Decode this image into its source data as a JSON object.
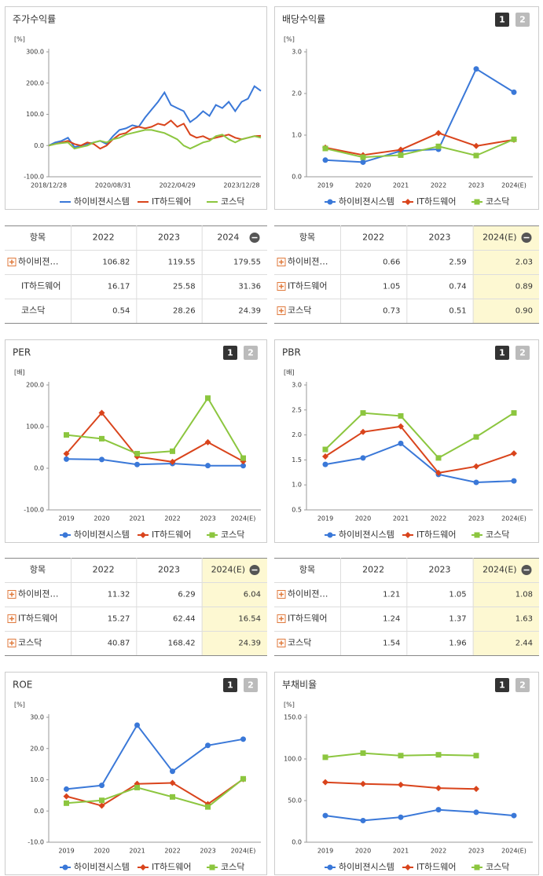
{
  "chart_data": [
    {
      "type": "line",
      "title": "주가수익률",
      "unit": "[%]",
      "pages": [],
      "categories": [
        "2018/12/28",
        null,
        null,
        null,
        null,
        null,
        null,
        null,
        null,
        null,
        "2020/08/31",
        null,
        null,
        null,
        null,
        null,
        null,
        null,
        null,
        null,
        "2022/04/29",
        null,
        null,
        null,
        null,
        null,
        null,
        null,
        null,
        null,
        "2023/12/28",
        null,
        null,
        null
      ],
      "ylim": [
        -100,
        300
      ],
      "yticks": [
        {
          "value": -100,
          "label": "-100.0"
        },
        {
          "value": 0,
          "label": "0.0"
        },
        {
          "value": 100,
          "label": "100.0"
        },
        {
          "value": 200,
          "label": "200.0"
        },
        {
          "value": 300,
          "label": "300.0"
        }
      ],
      "grid": false,
      "series": [
        {
          "name": "하이비젼시스템",
          "color": "#3a78d8",
          "values": [
            0,
            10,
            15,
            25,
            -5,
            0,
            5,
            10,
            15,
            5,
            30,
            50,
            55,
            65,
            60,
            90,
            115,
            140,
            170,
            130,
            120,
            110,
            75,
            90,
            110,
            95,
            130,
            120,
            140,
            110,
            140,
            150,
            190,
            175
          ]
        },
        {
          "name": "IT하드웨어",
          "color": "#d9441c",
          "values": [
            0,
            5,
            10,
            15,
            5,
            0,
            10,
            5,
            -10,
            0,
            20,
            35,
            40,
            55,
            60,
            55,
            60,
            70,
            65,
            80,
            60,
            70,
            35,
            25,
            30,
            20,
            25,
            30,
            35,
            25,
            20,
            25,
            30,
            31
          ]
        },
        {
          "name": "코스닥",
          "color": "#8cc63f",
          "values": [
            0,
            5,
            8,
            10,
            -10,
            -5,
            0,
            10,
            15,
            10,
            20,
            25,
            35,
            40,
            45,
            50,
            50,
            45,
            40,
            30,
            20,
            0,
            -10,
            0,
            10,
            15,
            30,
            35,
            20,
            10,
            20,
            25,
            30,
            25
          ]
        }
      ]
    },
    {
      "type": "line",
      "title": "배당수익률",
      "unit": "[%]",
      "pages": [
        "1",
        "2"
      ],
      "categories": [
        "2019",
        "2020",
        "2021",
        "2022",
        "2023",
        "2024(E)"
      ],
      "ylim": [
        0,
        3
      ],
      "yticks": [
        {
          "value": 0,
          "label": "0.0"
        },
        {
          "value": 1,
          "label": "1.0"
        },
        {
          "value": 2,
          "label": "2.0"
        },
        {
          "value": 3,
          "label": "3.0"
        }
      ],
      "grid": false,
      "series": [
        {
          "name": "하이비젼시스템",
          "color": "#3a78d8",
          "marker": "circle",
          "values": [
            0.4,
            0.35,
            0.62,
            0.66,
            2.59,
            2.03
          ]
        },
        {
          "name": "IT하드웨어",
          "color": "#d9441c",
          "marker": "diamond",
          "values": [
            0.7,
            0.52,
            0.65,
            1.05,
            0.74,
            0.89
          ]
        },
        {
          "name": "코스닥",
          "color": "#8cc63f",
          "marker": "square",
          "values": [
            0.68,
            0.47,
            0.52,
            0.73,
            0.51,
            0.9
          ]
        }
      ]
    },
    {
      "type": "line",
      "title": "PER",
      "unit": "[배]",
      "pages": [
        "1",
        "2"
      ],
      "categories": [
        "2019",
        "2020",
        "2021",
        "2022",
        "2023",
        "2024(E)"
      ],
      "ylim": [
        -100,
        200
      ],
      "yticks": [
        {
          "value": -100,
          "label": "-100.0"
        },
        {
          "value": 0,
          "label": "0.0"
        },
        {
          "value": 100,
          "label": "100.0"
        },
        {
          "value": 200,
          "label": "200.0"
        }
      ],
      "grid": false,
      "series": [
        {
          "name": "하이비젼시스템",
          "color": "#3a78d8",
          "marker": "circle",
          "values": [
            22,
            21,
            9,
            11.32,
            6.29,
            6.04
          ]
        },
        {
          "name": "IT하드웨어",
          "color": "#d9441c",
          "marker": "diamond",
          "values": [
            35,
            133,
            28,
            15.27,
            62.44,
            16.54
          ]
        },
        {
          "name": "코스닥",
          "color": "#8cc63f",
          "marker": "square",
          "values": [
            80,
            71,
            35,
            40.87,
            168.42,
            24.39
          ]
        }
      ]
    },
    {
      "type": "line",
      "title": "PBR",
      "unit": "[배]",
      "pages": [
        "1",
        "2"
      ],
      "categories": [
        "2019",
        "2020",
        "2021",
        "2022",
        "2023",
        "2024(E)"
      ],
      "ylim": [
        0.5,
        3
      ],
      "yticks": [
        0.5,
        {
          "value": 1,
          "label": "1.0"
        },
        1.5,
        {
          "value": 2,
          "label": "2.0"
        },
        2.5,
        {
          "value": 3,
          "label": "3.0"
        }
      ],
      "grid": false,
      "series": [
        {
          "name": "하이비젼시스템",
          "color": "#3a78d8",
          "marker": "circle",
          "values": [
            1.41,
            1.54,
            1.83,
            1.21,
            1.05,
            1.08
          ]
        },
        {
          "name": "IT하드웨어",
          "color": "#d9441c",
          "marker": "diamond",
          "values": [
            1.57,
            2.06,
            2.17,
            1.24,
            1.37,
            1.63
          ]
        },
        {
          "name": "코스닥",
          "color": "#8cc63f",
          "marker": "square",
          "values": [
            1.71,
            2.44,
            2.38,
            1.54,
            1.96,
            2.44
          ]
        }
      ]
    },
    {
      "type": "line",
      "title": "ROE",
      "unit": "[%]",
      "pages": [
        "1",
        "2"
      ],
      "categories": [
        "2019",
        "2020",
        "2021",
        "2022",
        "2023",
        "2024(E)"
      ],
      "ylim": [
        -10,
        30
      ],
      "yticks": [
        {
          "value": -10,
          "label": "-10.0"
        },
        {
          "value": 0,
          "label": "0.0"
        },
        {
          "value": 10,
          "label": "10.0"
        },
        {
          "value": 20,
          "label": "20.0"
        },
        {
          "value": 30,
          "label": "30.0"
        }
      ],
      "grid": false,
      "series": [
        {
          "name": "하이비젼시스템",
          "color": "#3a78d8",
          "marker": "circle",
          "values": [
            7,
            8.2,
            27.5,
            12.7,
            21,
            23
          ]
        },
        {
          "name": "IT하드웨어",
          "color": "#d9441c",
          "marker": "diamond",
          "values": [
            4.7,
            1.7,
            8.7,
            9,
            2.2,
            10.2
          ]
        },
        {
          "name": "코스닥",
          "color": "#8cc63f",
          "marker": "square",
          "values": [
            2.5,
            3.4,
            7.5,
            4.5,
            1.3,
            10.3
          ]
        }
      ]
    },
    {
      "type": "line",
      "title": "부채비율",
      "unit": "[%]",
      "pages": [
        "1",
        "2"
      ],
      "categories": [
        "2019",
        "2020",
        "2021",
        "2022",
        "2023",
        "2024(E)"
      ],
      "ylim": [
        0,
        150
      ],
      "yticks": [
        {
          "value": 0,
          "label": "0.0"
        },
        {
          "value": 50,
          "label": "50.0"
        },
        {
          "value": 100,
          "label": "100.0"
        },
        {
          "value": 150,
          "label": "150.0"
        }
      ],
      "grid": false,
      "series": [
        {
          "name": "하이비젼시스템",
          "color": "#3a78d8",
          "marker": "circle",
          "values": [
            32,
            26,
            30,
            39,
            36,
            32
          ]
        },
        {
          "name": "IT하드웨어",
          "color": "#d9441c",
          "marker": "diamond",
          "values": [
            72,
            70,
            69,
            65,
            64,
            null
          ]
        },
        {
          "name": "코스닥",
          "color": "#8cc63f",
          "marker": "square",
          "values": [
            102,
            107,
            104,
            105,
            104,
            null
          ]
        }
      ]
    }
  ],
  "tables": [
    {
      "headers": [
        "항목",
        "2022",
        "2023",
        "2024"
      ],
      "highlight_last": false,
      "expandable": [
        true,
        false,
        false
      ],
      "rows": [
        [
          "하이비젼…",
          "106.82",
          "119.55",
          "179.55"
        ],
        [
          "IT하드웨어",
          "16.17",
          "25.58",
          "31.36"
        ],
        [
          "코스닥",
          "0.54",
          "28.26",
          "24.39"
        ]
      ]
    },
    {
      "headers": [
        "항목",
        "2022",
        "2023",
        "2024(E)"
      ],
      "highlight_last": true,
      "expandable": [
        true,
        true,
        true
      ],
      "rows": [
        [
          "하이비젼…",
          "0.66",
          "2.59",
          "2.03"
        ],
        [
          "IT하드웨어",
          "1.05",
          "0.74",
          "0.89"
        ],
        [
          "코스닥",
          "0.73",
          "0.51",
          "0.90"
        ]
      ]
    },
    {
      "headers": [
        "항목",
        "2022",
        "2023",
        "2024(E)"
      ],
      "highlight_last": true,
      "expandable": [
        true,
        true,
        true
      ],
      "rows": [
        [
          "하이비젼…",
          "11.32",
          "6.29",
          "6.04"
        ],
        [
          "IT하드웨어",
          "15.27",
          "62.44",
          "16.54"
        ],
        [
          "코스닥",
          "40.87",
          "168.42",
          "24.39"
        ]
      ]
    },
    {
      "headers": [
        "항목",
        "2022",
        "2023",
        "2024(E)"
      ],
      "highlight_last": true,
      "expandable": [
        true,
        true,
        true
      ],
      "rows": [
        [
          "하이비젼…",
          "1.21",
          "1.05",
          "1.08"
        ],
        [
          "IT하드웨어",
          "1.24",
          "1.37",
          "1.63"
        ],
        [
          "코스닥",
          "1.54",
          "1.96",
          "2.44"
        ]
      ]
    }
  ]
}
